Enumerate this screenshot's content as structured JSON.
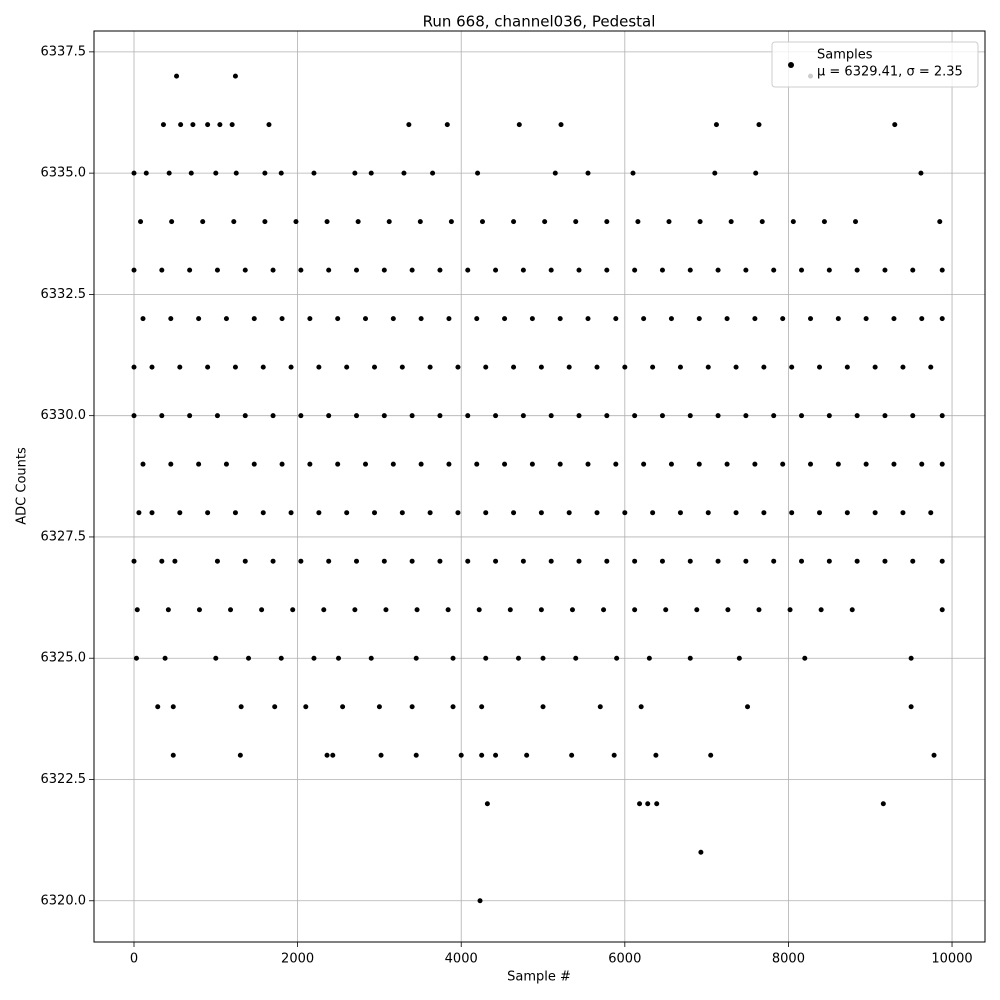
{
  "chart_data": {
    "type": "scatter",
    "title": "Run 668, channel036, Pedestal",
    "x_label": "Sample #",
    "y_label": "ADC Counts",
    "legend_note": "μ = 6329.41, σ = 2.35",
    "legend_position": "upper right",
    "grid": true,
    "xlim": [
      -489,
      10403
    ],
    "ylim": [
      6319.15,
      6337.93
    ],
    "xticks": [
      0,
      2000,
      4000,
      6000,
      8000,
      10000
    ],
    "yticks": [
      {
        "value": 6320,
        "label": "6320.0"
      },
      6322.5,
      {
        "value": 6325,
        "label": "6325.0"
      },
      6327.5,
      {
        "value": 6330,
        "label": "6330.0"
      },
      6332.5,
      {
        "value": 6335,
        "label": "6335.0"
      },
      6337.5
    ],
    "x": [
      0,
      340,
      680,
      1020,
      1360,
      1700,
      2040,
      2380,
      2720,
      3060,
      3400,
      3740,
      4080,
      4420,
      4760,
      5100,
      5440,
      5780,
      6120,
      6460,
      6800,
      7140,
      7480,
      7820,
      8160,
      8500,
      8840,
      9180,
      9520,
      9880,
      110,
      450,
      790,
      1130,
      1470,
      1810,
      2150,
      2490,
      2830,
      3170,
      3510,
      3850,
      4190,
      4530,
      4870,
      5210,
      5550,
      5890,
      6230,
      6570,
      6910,
      7250,
      7590,
      7930,
      8270,
      8610,
      8950,
      9290,
      9630,
      9880,
      220,
      560,
      900,
      1240,
      1580,
      1920,
      2260,
      2600,
      2940,
      3280,
      3620,
      3960,
      4300,
      4640,
      4980,
      5320,
      5660,
      6000,
      6340,
      6680,
      7020,
      7360,
      7700,
      8040,
      8380,
      8720,
      9060,
      9400,
      9740,
      0,
      0,
      340,
      680,
      1020,
      1360,
      1700,
      2040,
      2380,
      2720,
      3060,
      3400,
      3740,
      4080,
      4420,
      4760,
      5100,
      5440,
      5780,
      6120,
      6460,
      6800,
      7140,
      7480,
      7820,
      8160,
      8500,
      8840,
      9180,
      9520,
      9880,
      110,
      450,
      790,
      1130,
      1470,
      1810,
      2150,
      2490,
      2830,
      3170,
      3510,
      3850,
      4190,
      4530,
      4870,
      5210,
      5550,
      5890,
      6230,
      6570,
      6910,
      7250,
      7590,
      7930,
      8270,
      8610,
      8950,
      9290,
      9630,
      9880,
      220,
      560,
      900,
      1240,
      1580,
      1920,
      2260,
      2600,
      2940,
      3280,
      3620,
      3960,
      4300,
      4640,
      4980,
      5320,
      5660,
      6000,
      6340,
      6680,
      7020,
      7360,
      7700,
      8040,
      8380,
      8720,
      9060,
      9400,
      9740,
      60,
      0,
      340,
      1020,
      1360,
      1700,
      2040,
      2380,
      2720,
      3060,
      3400,
      3740,
      4080,
      4420,
      4760,
      5100,
      5440,
      5780,
      6120,
      6460,
      6800,
      7140,
      7480,
      7820,
      8160,
      8500,
      8840,
      9180,
      9520,
      9880,
      500,
      40,
      420,
      800,
      1180,
      1560,
      1940,
      2320,
      2700,
      3080,
      3460,
      3840,
      4220,
      4600,
      4980,
      5360,
      5740,
      6120,
      6500,
      6880,
      7260,
      7640,
      8020,
      8400,
      8780,
      9880,
      80,
      460,
      840,
      1220,
      1600,
      1980,
      2360,
      2740,
      3120,
      3500,
      3880,
      4260,
      4640,
      5020,
      5400,
      5780,
      6160,
      6540,
      6920,
      7300,
      7680,
      8060,
      8440,
      8820,
      9850,
      30,
      380,
      1000,
      1400,
      1800,
      2200,
      2500,
      2900,
      3450,
      3900,
      4300,
      4700,
      5000,
      5400,
      5900,
      6300,
      6800,
      7400,
      8200,
      9500,
      0,
      150,
      430,
      700,
      1000,
      1250,
      1600,
      1800,
      2200,
      2700,
      2900,
      3300,
      3650,
      4200,
      5150,
      5550,
      6100,
      7100,
      7600,
      9620,
      290,
      480,
      1310,
      1720,
      2100,
      2550,
      3000,
      3400,
      3900,
      4250,
      5000,
      5700,
      6200,
      7500,
      9500,
      480,
      1300,
      2360,
      2430,
      3020,
      3450,
      4000,
      4250,
      4420,
      4800,
      5350,
      5870,
      6380,
      7050,
      9780,
      360,
      570,
      720,
      900,
      1050,
      1200,
      1650,
      3360,
      3830,
      4710,
      5220,
      7120,
      7640,
      9300,
      520,
      1240,
      8270,
      4320,
      6180,
      6280,
      6390,
      9160,
      6930,
      4230
    ],
    "series": [
      {
        "name": "Samples",
        "color": "#000000",
        "values": [
          6333,
          6333,
          6333,
          6333,
          6333,
          6333,
          6333,
          6333,
          6333,
          6333,
          6333,
          6333,
          6333,
          6333,
          6333,
          6333,
          6333,
          6333,
          6333,
          6333,
          6333,
          6333,
          6333,
          6333,
          6333,
          6333,
          6333,
          6333,
          6333,
          6333,
          6332,
          6332,
          6332,
          6332,
          6332,
          6332,
          6332,
          6332,
          6332,
          6332,
          6332,
          6332,
          6332,
          6332,
          6332,
          6332,
          6332,
          6332,
          6332,
          6332,
          6332,
          6332,
          6332,
          6332,
          6332,
          6332,
          6332,
          6332,
          6332,
          6332,
          6331,
          6331,
          6331,
          6331,
          6331,
          6331,
          6331,
          6331,
          6331,
          6331,
          6331,
          6331,
          6331,
          6331,
          6331,
          6331,
          6331,
          6331,
          6331,
          6331,
          6331,
          6331,
          6331,
          6331,
          6331,
          6331,
          6331,
          6331,
          6331,
          6331,
          6330,
          6330,
          6330,
          6330,
          6330,
          6330,
          6330,
          6330,
          6330,
          6330,
          6330,
          6330,
          6330,
          6330,
          6330,
          6330,
          6330,
          6330,
          6330,
          6330,
          6330,
          6330,
          6330,
          6330,
          6330,
          6330,
          6330,
          6330,
          6330,
          6330,
          6329,
          6329,
          6329,
          6329,
          6329,
          6329,
          6329,
          6329,
          6329,
          6329,
          6329,
          6329,
          6329,
          6329,
          6329,
          6329,
          6329,
          6329,
          6329,
          6329,
          6329,
          6329,
          6329,
          6329,
          6329,
          6329,
          6329,
          6329,
          6329,
          6329,
          6328,
          6328,
          6328,
          6328,
          6328,
          6328,
          6328,
          6328,
          6328,
          6328,
          6328,
          6328,
          6328,
          6328,
          6328,
          6328,
          6328,
          6328,
          6328,
          6328,
          6328,
          6328,
          6328,
          6328,
          6328,
          6328,
          6328,
          6328,
          6328,
          6328,
          6327,
          6327,
          6327,
          6327,
          6327,
          6327,
          6327,
          6327,
          6327,
          6327,
          6327,
          6327,
          6327,
          6327,
          6327,
          6327,
          6327,
          6327,
          6327,
          6327,
          6327,
          6327,
          6327,
          6327,
          6327,
          6327,
          6327,
          6327,
          6327,
          6327,
          6326,
          6326,
          6326,
          6326,
          6326,
          6326,
          6326,
          6326,
          6326,
          6326,
          6326,
          6326,
          6326,
          6326,
          6326,
          6326,
          6326,
          6326,
          6326,
          6326,
          6326,
          6326,
          6326,
          6326,
          6326,
          6334,
          6334,
          6334,
          6334,
          6334,
          6334,
          6334,
          6334,
          6334,
          6334,
          6334,
          6334,
          6334,
          6334,
          6334,
          6334,
          6334,
          6334,
          6334,
          6334,
          6334,
          6334,
          6334,
          6334,
          6334,
          6325,
          6325,
          6325,
          6325,
          6325,
          6325,
          6325,
          6325,
          6325,
          6325,
          6325,
          6325,
          6325,
          6325,
          6325,
          6325,
          6325,
          6325,
          6325,
          6325,
          6335,
          6335,
          6335,
          6335,
          6335,
          6335,
          6335,
          6335,
          6335,
          6335,
          6335,
          6335,
          6335,
          6335,
          6335,
          6335,
          6335,
          6335,
          6335,
          6335,
          6324,
          6324,
          6324,
          6324,
          6324,
          6324,
          6324,
          6324,
          6324,
          6324,
          6324,
          6324,
          6324,
          6324,
          6324,
          6323,
          6323,
          6323,
          6323,
          6323,
          6323,
          6323,
          6323,
          6323,
          6323,
          6323,
          6323,
          6323,
          6323,
          6323,
          6336,
          6336,
          6336,
          6336,
          6336,
          6336,
          6336,
          6336,
          6336,
          6336,
          6336,
          6336,
          6336,
          6336,
          6337,
          6337,
          6337,
          6322,
          6322,
          6322,
          6322,
          6322,
          6321,
          6320
        ]
      }
    ]
  }
}
